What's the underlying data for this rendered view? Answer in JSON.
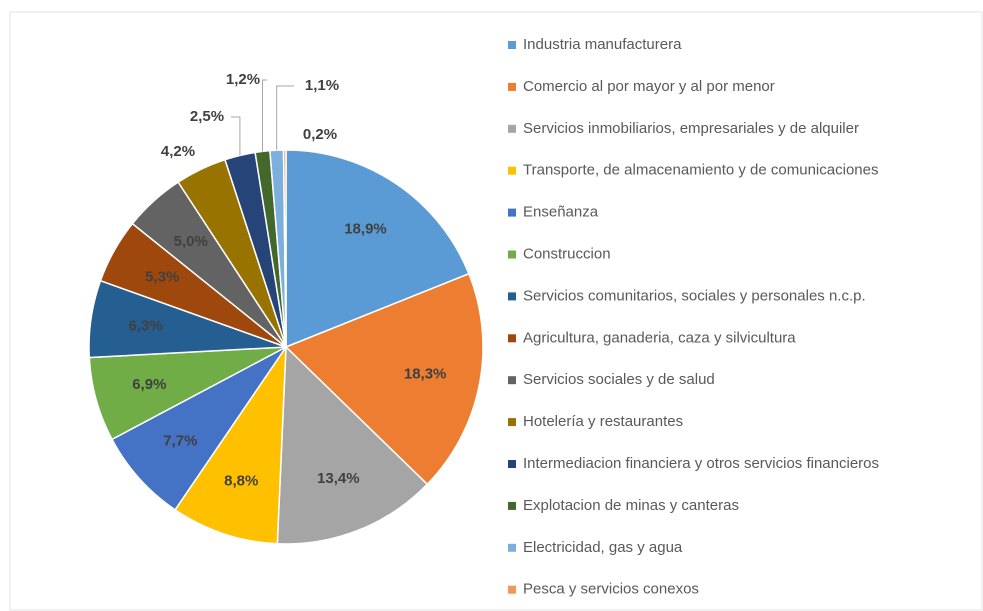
{
  "chart_data": {
    "type": "pie",
    "categories": [
      "Industria manufacturera",
      "Comercio al por mayor y al por menor",
      "Servicios inmobiliarios, empresariales y de alquiler",
      "Transporte, de almacenamiento y de comunicaciones",
      "Enseñanza",
      "Construccion",
      "Servicios comunitarios, sociales y personales n.c.p.",
      "Agricultura, ganaderia, caza y silvicultura",
      "Servicios sociales y de salud",
      "Hotelería y restaurantes",
      "Intermediacion financiera y otros servicios financieros",
      "Explotacion  de  minas  y  canteras",
      "Electricidad, gas y agua",
      "Pesca y servicios conexos"
    ],
    "values": [
      18.9,
      18.3,
      13.4,
      8.8,
      7.7,
      6.9,
      6.3,
      5.3,
      5.0,
      4.2,
      2.5,
      1.2,
      1.1,
      0.2
    ],
    "value_labels": [
      "18,9%",
      "18,3%",
      "13,4%",
      "8,8%",
      "7,7%",
      "6,9%",
      "6,3%",
      "5,3%",
      "5,0%",
      "4,2%",
      "2,5%",
      "1,2%",
      "1,1%",
      "0,2%"
    ],
    "colors": [
      "#5b9bd5",
      "#ed7d31",
      "#a5a5a5",
      "#ffc000",
      "#4472c4",
      "#70ad47",
      "#255e91",
      "#9e480e",
      "#636363",
      "#997300",
      "#264478",
      "#43682b",
      "#7cafdd",
      "#f1975a"
    ],
    "legend": "right"
  }
}
